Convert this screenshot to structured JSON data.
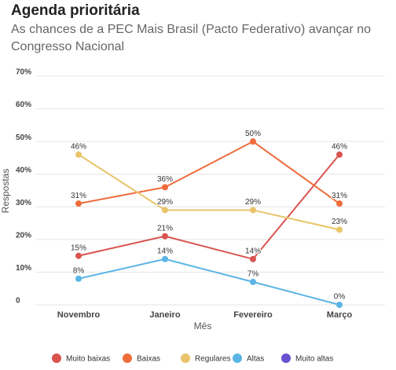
{
  "chart_data": {
    "type": "line",
    "title": "Agenda prioritária",
    "subtitle": [
      "As chances de a PEC Mais Brasil (Pacto Federativo) avançar no",
      "Congresso Nacional"
    ],
    "xlabel": "Mês",
    "ylabel": "Respostas",
    "categories": [
      "Novembro",
      "Janeiro",
      "Fevereiro",
      "Março"
    ],
    "series": [
      {
        "name": "Muito baixas",
        "color": "#d9534f",
        "values": [
          15,
          21,
          14,
          46
        ],
        "value_labels": [
          "15%",
          "21%",
          "14%",
          "46%"
        ]
      },
      {
        "name": "Baixas",
        "color": "#ee6b3b",
        "values": [
          31,
          36,
          50,
          31
        ],
        "value_labels": [
          "31%",
          "36%",
          "50%",
          "31%"
        ]
      },
      {
        "name": "Regulares",
        "color": "#e9c46a",
        "values": [
          46,
          29,
          29,
          23
        ],
        "value_labels": [
          "46%",
          "29%",
          "29%",
          "23%"
        ]
      },
      {
        "name": "Altas",
        "color": "#5ab4e5",
        "values": [
          8,
          14,
          7,
          0
        ],
        "value_labels": [
          "8%",
          "14%",
          "7%",
          "0%"
        ]
      },
      {
        "name": "Muito altas",
        "color": "#6a4fd0",
        "values": [
          null,
          null,
          null,
          null
        ]
      }
    ],
    "ylim": [
      0,
      70
    ],
    "yticks": [
      0,
      {
        "value": 10,
        "label": "10%"
      },
      {
        "value": 20,
        "label": "20%"
      },
      {
        "value": 30,
        "label": "30%"
      },
      {
        "value": 40,
        "label": "40%"
      },
      {
        "value": 50,
        "label": "50%"
      },
      {
        "value": 60,
        "label": "60%"
      },
      {
        "value": 70,
        "label": "70%"
      }
    ],
    "grid": true,
    "legend": "bottom"
  }
}
